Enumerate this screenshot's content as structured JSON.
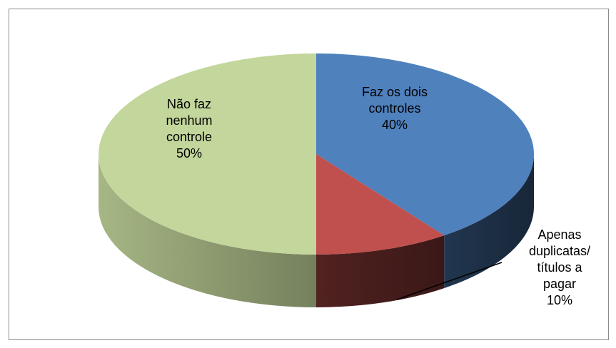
{
  "chart_data": {
    "type": "pie3d",
    "categories": [
      "Faz os dois controles",
      "Apenas duplicatas/ títulos a pagar",
      "Não faz nenhum controle"
    ],
    "values": [
      40,
      10,
      50
    ],
    "value_labels": [
      "40%",
      "10%",
      "50%"
    ],
    "colors": [
      "#4f81bd",
      "#c0504d",
      "#c3d69b"
    ]
  }
}
